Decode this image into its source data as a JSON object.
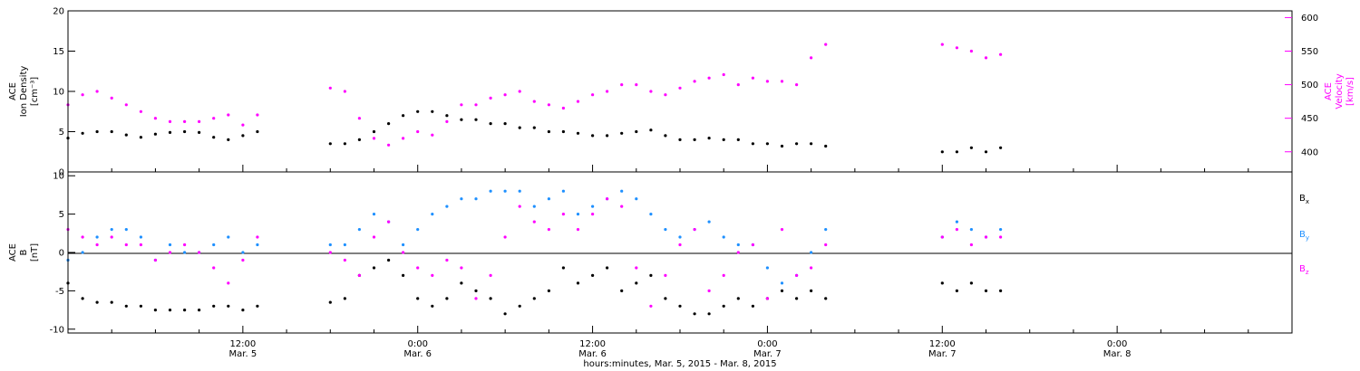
{
  "chart_data": [
    {
      "type": "scatter",
      "panel": "top",
      "title": "",
      "xlabel": "hours:minutes, Mar.  5, 2015 - Mar.  8, 2015",
      "x_unit": "hours since 2015-03-05 00:00",
      "xlim": [
        0,
        84
      ],
      "ylabel_left": [
        "ACE",
        "Ion Density",
        "[cm⁻³]"
      ],
      "ylim_left": [
        0,
        20
      ],
      "yticks_left": [
        "0",
        "5",
        "10",
        "15",
        "20"
      ],
      "ylabel_right": [
        "ACE",
        "Velocity",
        "[km/s]"
      ],
      "ylim_right": [
        370,
        610
      ],
      "yticks_right": [
        "400",
        "450",
        "500",
        "550",
        "600"
      ],
      "series": [
        {
          "name": "",
          "axis": "left",
          "color": "#000000",
          "x": [
            0,
            1,
            2,
            3,
            4,
            5,
            6,
            7,
            8,
            9,
            10,
            11,
            12,
            13,
            18,
            19,
            20,
            21,
            22,
            23,
            24,
            25,
            26,
            27,
            28,
            29,
            30,
            31,
            32,
            33,
            34,
            35,
            36,
            37,
            38,
            39,
            40,
            41,
            42,
            43,
            44,
            45,
            46,
            47,
            48,
            49,
            50,
            51,
            52,
            60,
            61,
            62,
            63,
            64
          ],
          "y": [
            4.2,
            4.8,
            5.0,
            5.0,
            4.6,
            4.3,
            4.7,
            4.9,
            5.0,
            4.9,
            4.3,
            4.0,
            4.5,
            5.0,
            3.5,
            3.5,
            4.0,
            5.0,
            6.0,
            7.0,
            7.5,
            7.5,
            7.0,
            6.5,
            6.5,
            6.0,
            6.0,
            5.5,
            5.5,
            5.0,
            5.0,
            4.8,
            4.5,
            4.5,
            4.8,
            5.0,
            5.2,
            4.5,
            4.0,
            4.0,
            4.2,
            4.0,
            4.0,
            3.5,
            3.5,
            3.2,
            3.5,
            3.5,
            3.2,
            2.5,
            2.5,
            3.0,
            2.5,
            3.0
          ]
        },
        {
          "name": "",
          "axis": "right",
          "color": "#ff00ff",
          "x": [
            0,
            1,
            2,
            3,
            4,
            5,
            6,
            7,
            8,
            9,
            10,
            11,
            12,
            13,
            18,
            19,
            20,
            21,
            22,
            23,
            24,
            25,
            26,
            27,
            28,
            29,
            30,
            31,
            32,
            33,
            34,
            35,
            36,
            37,
            38,
            39,
            40,
            41,
            42,
            43,
            44,
            45,
            46,
            47,
            48,
            49,
            50,
            51,
            52,
            60,
            61,
            62,
            63,
            64
          ],
          "y": [
            470,
            485,
            490,
            480,
            470,
            460,
            450,
            445,
            445,
            445,
            450,
            455,
            440,
            455,
            495,
            490,
            450,
            420,
            410,
            420,
            430,
            425,
            445,
            470,
            470,
            480,
            485,
            490,
            475,
            470,
            465,
            475,
            485,
            490,
            500,
            500,
            490,
            485,
            495,
            505,
            510,
            515,
            500,
            510,
            505,
            505,
            500,
            540,
            560,
            560,
            555,
            550,
            540,
            545
          ]
        }
      ]
    },
    {
      "type": "scatter",
      "panel": "bottom",
      "title": "",
      "x_unit": "hours since 2015-03-05 00:00",
      "xlim": [
        0,
        84
      ],
      "xticks": [
        "12:00",
        "0:00",
        "12:00",
        "0:00",
        "12:00",
        "0:00"
      ],
      "xticks_date": [
        "Mar. 5",
        "Mar. 6",
        "Mar. 6",
        "Mar. 7",
        "Mar. 7",
        "Mar. 8"
      ],
      "ylabel_left": [
        "ACE",
        "B",
        "[nT]"
      ],
      "ylim_left": [
        -10.5,
        10.5
      ],
      "yticks_left": [
        "-10",
        "-5",
        "0",
        "5",
        "10"
      ],
      "legend": [
        "B",
        "B",
        "B"
      ],
      "legend_subscripts": [
        "x",
        "y",
        "z"
      ],
      "series": [
        {
          "name": "Bx",
          "color": "#000000",
          "x": [
            0,
            1,
            2,
            3,
            4,
            5,
            6,
            7,
            8,
            9,
            10,
            11,
            12,
            13,
            18,
            19,
            20,
            21,
            22,
            23,
            24,
            25,
            26,
            27,
            28,
            29,
            30,
            31,
            32,
            33,
            34,
            35,
            36,
            37,
            38,
            39,
            40,
            41,
            42,
            43,
            44,
            45,
            46,
            47,
            48,
            49,
            50,
            51,
            52,
            60,
            61,
            62,
            63,
            64
          ],
          "y": [
            -4,
            -6,
            -6.5,
            -6.5,
            -7,
            -7,
            -7.5,
            -7.5,
            -7.5,
            -7.5,
            -7,
            -7,
            -7.5,
            -7,
            -6.5,
            -6,
            -3,
            -2,
            -1,
            -3,
            -6,
            -7,
            -6,
            -4,
            -5,
            -6,
            -8,
            -7,
            -6,
            -5,
            -2,
            -4,
            -3,
            -2,
            -5,
            -4,
            -3,
            -6,
            -7,
            -8,
            -8,
            -7,
            -6,
            -7,
            -6,
            -5,
            -6,
            -5,
            -6,
            -4,
            -5,
            -4,
            -5,
            -5
          ]
        },
        {
          "name": "By",
          "color": "#1e90ff",
          "x": [
            0,
            1,
            2,
            3,
            4,
            5,
            6,
            7,
            8,
            9,
            10,
            11,
            12,
            13,
            18,
            19,
            20,
            21,
            22,
            23,
            24,
            25,
            26,
            27,
            28,
            29,
            30,
            31,
            32,
            33,
            34,
            35,
            36,
            37,
            38,
            39,
            40,
            41,
            42,
            43,
            44,
            45,
            46,
            47,
            48,
            49,
            50,
            51,
            52,
            60,
            61,
            62,
            63,
            64
          ],
          "y": [
            -1,
            0,
            2,
            3,
            3,
            2,
            -1,
            1,
            0,
            0,
            1,
            2,
            0,
            1,
            1,
            1,
            3,
            5,
            4,
            1,
            3,
            5,
            6,
            7,
            7,
            8,
            8,
            8,
            6,
            7,
            8,
            5,
            6,
            7,
            8,
            7,
            5,
            3,
            2,
            3,
            4,
            2,
            1,
            1,
            -2,
            -4,
            -3,
            0,
            3,
            2,
            4,
            3,
            2,
            3
          ]
        },
        {
          "name": "Bz",
          "color": "#ff00ff",
          "x": [
            0,
            1,
            2,
            3,
            4,
            5,
            6,
            7,
            8,
            9,
            10,
            11,
            12,
            13,
            18,
            19,
            20,
            21,
            22,
            23,
            24,
            25,
            26,
            27,
            28,
            29,
            30,
            31,
            32,
            33,
            34,
            35,
            36,
            37,
            38,
            39,
            40,
            41,
            42,
            43,
            44,
            45,
            46,
            47,
            48,
            49,
            50,
            51,
            52,
            60,
            61,
            62,
            63,
            64
          ],
          "y": [
            3,
            2,
            1,
            2,
            1,
            1,
            -1,
            0,
            1,
            0,
            -2,
            -4,
            -1,
            2,
            0,
            -1,
            -3,
            2,
            4,
            0,
            -2,
            -3,
            -1,
            -2,
            -6,
            -3,
            2,
            6,
            4,
            3,
            5,
            3,
            5,
            7,
            6,
            -2,
            -7,
            -3,
            1,
            3,
            -5,
            -3,
            0,
            1,
            -6,
            3,
            -3,
            -2,
            1,
            2,
            3,
            1,
            2,
            2
          ]
        }
      ]
    }
  ]
}
